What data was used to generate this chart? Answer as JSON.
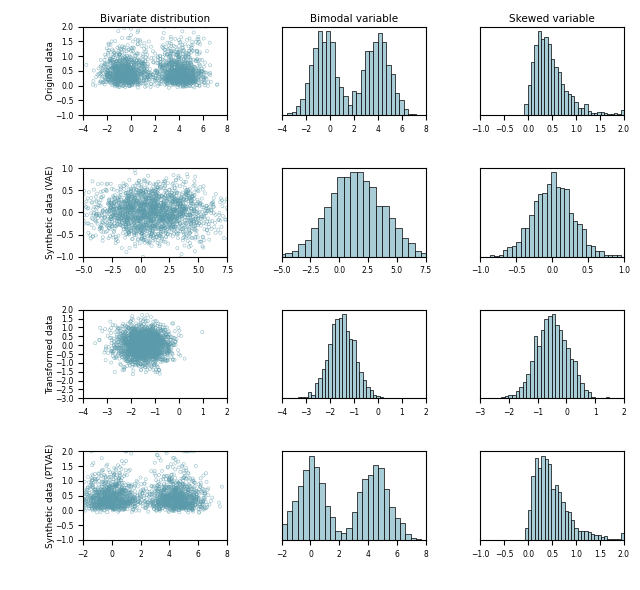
{
  "title_col1": "Bivariate distribution",
  "title_col2": "Bimodal variable",
  "title_col3": "Skewed variable",
  "row_labels": [
    "Original data",
    "Synthetic data (VAE)",
    "Transformed data",
    "Synthetic data (PTVAE)"
  ],
  "hist_color": "#a8cdd6",
  "hist_edge_color": "#000000",
  "marker_edgecolor": "#5b9aaa",
  "scatter_marker_size": 5,
  "rows": [
    {
      "scatter_xlim": [
        -4,
        8
      ],
      "scatter_ylim": [
        -1.0,
        2.0
      ],
      "scatter_xticks": [
        -4,
        -2,
        0,
        2,
        4,
        6,
        8
      ],
      "scatter_yticks": [
        -1.0,
        -0.5,
        0.0,
        0.5,
        1.0,
        1.5,
        2.0
      ],
      "bimodal_xlim": [
        -4,
        8
      ],
      "bimodal_xticks": [
        -4,
        -2,
        0,
        2,
        4,
        6,
        8
      ],
      "skewed_xlim": [
        -1.0,
        2.0
      ],
      "skewed_xticks": [
        -1.0,
        -0.5,
        0.0,
        0.5,
        1.0,
        1.5,
        2.0
      ]
    },
    {
      "scatter_xlim": [
        -5.0,
        7.5
      ],
      "scatter_ylim": [
        -1.0,
        1.0
      ],
      "scatter_xticks": [
        -5.0,
        -2.5,
        0.0,
        2.5,
        5.0,
        7.5
      ],
      "scatter_yticks": [
        -1.0,
        -0.5,
        0.0,
        0.5,
        1.0
      ],
      "bimodal_xlim": [
        -5.0,
        7.5
      ],
      "bimodal_xticks": [
        -5.0,
        -2.5,
        0.0,
        2.5,
        5.0,
        7.5
      ],
      "skewed_xlim": [
        -1.0,
        1.0
      ],
      "skewed_xticks": [
        -1.0,
        -0.5,
        0.0,
        0.5,
        1.0
      ]
    },
    {
      "scatter_xlim": [
        -4,
        2
      ],
      "scatter_ylim": [
        -3.0,
        2.0
      ],
      "scatter_xticks": [
        -4,
        -3,
        -2,
        -1,
        0,
        1,
        2
      ],
      "scatter_yticks": [
        -3.0,
        -2.5,
        -2.0,
        -1.5,
        -1.0,
        -0.5,
        0.0,
        0.5,
        1.0,
        1.5,
        2.0
      ],
      "bimodal_xlim": [
        -4,
        2
      ],
      "bimodal_xticks": [
        -4,
        -3,
        -2,
        -1,
        0,
        1,
        2
      ],
      "skewed_xlim": [
        -3,
        2
      ],
      "skewed_xticks": [
        -3,
        -2,
        -1,
        0,
        1,
        2
      ]
    },
    {
      "scatter_xlim": [
        -2,
        8
      ],
      "scatter_ylim": [
        -1.0,
        2.0
      ],
      "scatter_xticks": [
        -2,
        0,
        2,
        4,
        6,
        8
      ],
      "scatter_yticks": [
        -1.0,
        -0.5,
        0.0,
        0.5,
        1.0,
        1.5,
        2.0
      ],
      "bimodal_xlim": [
        -2,
        8
      ],
      "bimodal_xticks": [
        -2,
        0,
        2,
        4,
        6,
        8
      ],
      "skewed_xlim": [
        -1.0,
        2.0
      ],
      "skewed_xticks": [
        -1.0,
        -0.5,
        0.0,
        0.5,
        1.0,
        1.5,
        2.0
      ]
    }
  ],
  "random_seed": 42,
  "n_points": 2000
}
